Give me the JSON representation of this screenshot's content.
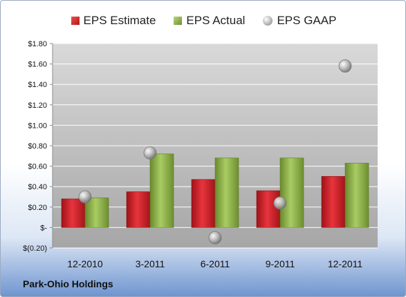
{
  "chart_data": {
    "type": "bar",
    "categories": [
      "12-2010",
      "3-2011",
      "6-2011",
      "9-2011",
      "12-2011"
    ],
    "series": [
      {
        "name": "EPS Estimate",
        "kind": "bar",
        "color": "#c8202a",
        "values": [
          0.28,
          0.35,
          0.47,
          0.36,
          0.5
        ]
      },
      {
        "name": "EPS Actual",
        "kind": "bar",
        "color": "#8fb24a",
        "values": [
          0.29,
          0.72,
          0.68,
          0.68,
          0.63
        ]
      },
      {
        "name": "EPS GAAP",
        "kind": "marker",
        "color": "#a8a8a8",
        "values": [
          0.3,
          0.73,
          -0.1,
          0.24,
          1.58
        ]
      }
    ],
    "yticks": [
      {
        "value": 1.8,
        "label": "$1.80"
      },
      {
        "value": 1.6,
        "label": "$1.60"
      },
      {
        "value": 1.4,
        "label": "$1.40"
      },
      {
        "value": 1.2,
        "label": "$1.20"
      },
      {
        "value": 1.0,
        "label": "$1.00"
      },
      {
        "value": 0.8,
        "label": "$0.80"
      },
      {
        "value": 0.6,
        "label": "$0.60"
      },
      {
        "value": 0.4,
        "label": "$0.40"
      },
      {
        "value": 0.2,
        "label": "$0.20"
      },
      {
        "value": 0.0,
        "label": "$-"
      },
      {
        "value": -0.2,
        "label": "$(0.20)"
      }
    ],
    "ylim": [
      -0.2,
      1.8
    ],
    "grid": true,
    "legend_position": "top",
    "title": "",
    "xlabel": "",
    "ylabel": ""
  },
  "company": "Park-Ohio Holdings"
}
